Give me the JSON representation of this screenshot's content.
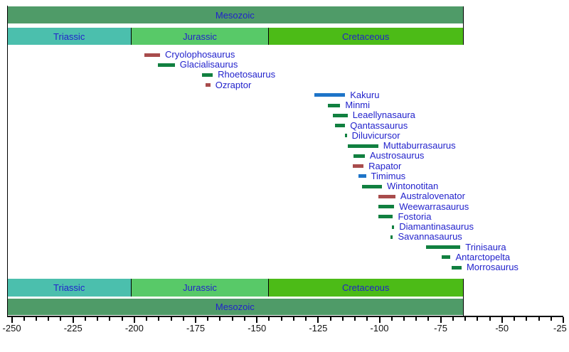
{
  "palette": {
    "background": "#FFFFFF",
    "text_navy": "#2222CC",
    "axis_black": "#000000",
    "era_green": "#4F9B68",
    "bar_colors": {
      "green": "#118040",
      "blue": "#1E74C8",
      "red": "#A84C4C"
    }
  },
  "chart_data": {
    "type": "bar",
    "subtype": "timeline-range-chart",
    "title": "",
    "xlabel": "",
    "ylabel": "",
    "axis": {
      "unit": "Ma",
      "domain": [
        -251.9,
        -25
      ],
      "major_tick_step": 25,
      "minor_tick_step": 5,
      "tick_labels": [
        "-250",
        "-225",
        "-200",
        "-175",
        "-150",
        "-125",
        "-100",
        "-75",
        "-50",
        "-25"
      ],
      "tick_values": [
        -250,
        -225,
        -200,
        -175,
        -150,
        -125,
        -100,
        -75,
        -50,
        -25
      ]
    },
    "era": {
      "label": "Mesozoic",
      "start": -251.9,
      "end": -66,
      "color": "#4F9B68"
    },
    "periods": [
      {
        "label": "Triassic",
        "start": -251.9,
        "end": -201.3,
        "color": "#4BBFAD"
      },
      {
        "label": "Jurassic",
        "start": -201.3,
        "end": -145.5,
        "color": "#58C968"
      },
      {
        "label": "Cretaceous",
        "start": -145.5,
        "end": -66,
        "color": "#4CBB17"
      }
    ],
    "taxa": [
      {
        "name": "Cryolophosaurus",
        "start": -196,
        "end": -189.5,
        "group": "red"
      },
      {
        "name": "Glacialisaurus",
        "start": -190.5,
        "end": -183.5,
        "group": "green"
      },
      {
        "name": "Rhoetosaurus",
        "start": -172.5,
        "end": -168,
        "group": "green"
      },
      {
        "name": "Ozraptor",
        "start": -171,
        "end": -169,
        "group": "red"
      },
      {
        "name": "Kakuru",
        "start": -126.5,
        "end": -114,
        "group": "blue"
      },
      {
        "name": "Minmi",
        "start": -121,
        "end": -116,
        "group": "green"
      },
      {
        "name": "Leaellynasaura",
        "start": -119,
        "end": -113,
        "group": "green"
      },
      {
        "name": "Qantassaurus",
        "start": -118,
        "end": -114,
        "group": "green"
      },
      {
        "name": "Diluvicursor",
        "start": -114,
        "end": -113.3,
        "group": "green"
      },
      {
        "name": "Muttaburrasaurus",
        "start": -113,
        "end": -100.5,
        "group": "green"
      },
      {
        "name": "Austrosaurus",
        "start": -110.5,
        "end": -106,
        "group": "green"
      },
      {
        "name": "Rapator",
        "start": -111,
        "end": -106.5,
        "group": "red"
      },
      {
        "name": "Timimus",
        "start": -108.5,
        "end": -105.5,
        "group": "blue"
      },
      {
        "name": "Wintonotitan",
        "start": -107,
        "end": -99,
        "group": "green"
      },
      {
        "name": "Australovenator",
        "start": -100.5,
        "end": -93.5,
        "group": "red"
      },
      {
        "name": "Weewarrasaurus",
        "start": -100.5,
        "end": -94,
        "group": "green"
      },
      {
        "name": "Fostoria",
        "start": -100.5,
        "end": -94.5,
        "group": "green"
      },
      {
        "name": "Diamantinasaurus",
        "start": -95,
        "end": -94,
        "group": "green"
      },
      {
        "name": "Savannasaurus",
        "start": -95.5,
        "end": -94.5,
        "group": "green"
      },
      {
        "name": "Trinisaura",
        "start": -81,
        "end": -67,
        "group": "green"
      },
      {
        "name": "Antarctopelta",
        "start": -74.5,
        "end": -71,
        "group": "green"
      },
      {
        "name": "Morrosaurus",
        "start": -70.5,
        "end": -66.5,
        "group": "green"
      }
    ],
    "layout_hints": {
      "era_band_positions": "top and bottom",
      "period_band_positions": "top and bottom",
      "grid": false,
      "legend": false
    }
  }
}
